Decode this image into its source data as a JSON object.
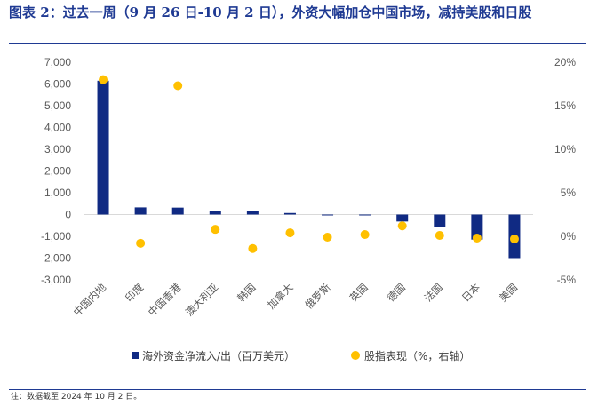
{
  "header": {
    "title": "图表 2：过去一周（9 月 26 日-10 月 2 日），外资大幅加仓中国市场，减持美股和日股"
  },
  "footer": {
    "note": "注：数据截至 2024 年 10 月 2 日。"
  },
  "colors": {
    "bar": "#102a83",
    "dot": "#ffc000",
    "accent": "#1f3a93"
  },
  "chart_data": {
    "type": "bar",
    "title": "",
    "categories": [
      "中国内地",
      "印度",
      "中国香港",
      "澳大利亚",
      "韩国",
      "加拿大",
      "俄罗斯",
      "英国",
      "德国",
      "法国",
      "日本",
      "美国"
    ],
    "series": [
      {
        "name": "海外资金净流入/出（百万美元）",
        "type": "bar",
        "axis": "left",
        "values": [
          6150,
          330,
          320,
          170,
          160,
          70,
          -40,
          -30,
          -320,
          -580,
          -1150,
          -2000
        ]
      },
      {
        "name": "股指表现（%，右轴）",
        "type": "scatter",
        "axis": "right",
        "values": [
          18.0,
          -0.8,
          17.3,
          0.8,
          -1.4,
          0.4,
          -0.1,
          0.2,
          1.2,
          0.1,
          -0.2,
          -0.3
        ]
      }
    ],
    "left_axis": {
      "min": -3000,
      "max": 7000,
      "step": 1000,
      "ticks": [
        "-3,000",
        "-2,000",
        "-1,000",
        "0",
        "1,000",
        "2,000",
        "3,000",
        "4,000",
        "5,000",
        "6,000",
        "7,000"
      ]
    },
    "right_axis": {
      "min": -5,
      "max": 20,
      "step": 5,
      "ticks": [
        "-5%",
        "0%",
        "5%",
        "10%",
        "15%",
        "20%"
      ]
    },
    "legend": [
      "海外资金净流入/出（百万美元）",
      "股指表现（%，右轴）"
    ],
    "legend_position": "bottom"
  }
}
